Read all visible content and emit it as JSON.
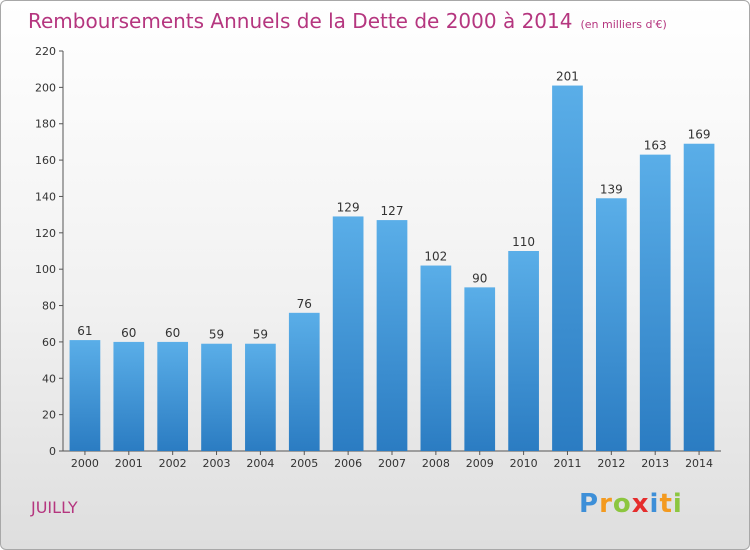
{
  "header": {
    "title": "Remboursements Annuels de la Dette de 2000 à 2014",
    "unit": "(en milliers d'€)"
  },
  "footer": {
    "city": "JUILLY",
    "logo_text": "Proxiti"
  },
  "colors": {
    "title": "#b5367f",
    "bar_top": "#5aaee8",
    "bar_bottom": "#2b7cc2"
  },
  "chart_data": {
    "type": "bar",
    "title": "Remboursements Annuels de la Dette de 2000 à 2014",
    "xlabel": "",
    "ylabel": "",
    "categories": [
      "2000",
      "2001",
      "2002",
      "2003",
      "2004",
      "2005",
      "2006",
      "2007",
      "2008",
      "2009",
      "2010",
      "2011",
      "2012",
      "2013",
      "2014"
    ],
    "values": [
      61,
      60,
      60,
      59,
      59,
      76,
      129,
      127,
      102,
      90,
      110,
      201,
      139,
      163,
      169
    ],
    "ylim": [
      0,
      220
    ],
    "yticks": [
      0,
      20,
      40,
      60,
      80,
      100,
      120,
      140,
      160,
      180,
      200,
      220
    ],
    "grid": false,
    "legend": "none"
  }
}
